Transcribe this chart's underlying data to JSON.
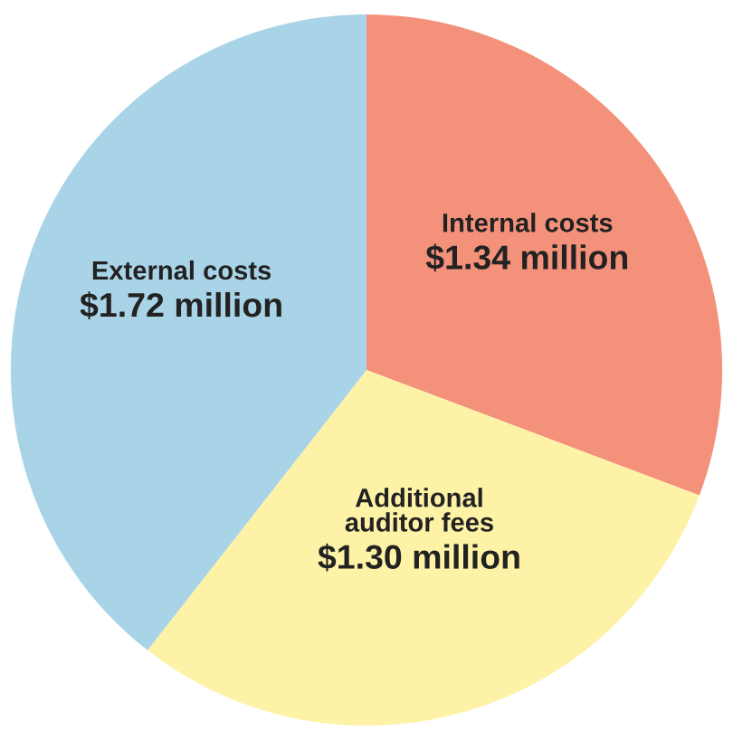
{
  "chart_data": {
    "type": "pie",
    "categories": [
      "Internal costs",
      "Additional auditor fees",
      "External costs"
    ],
    "values": [
      1.34,
      1.3,
      1.72
    ],
    "value_labels": [
      "$1.34 million",
      "$1.30 million",
      "$1.72 million"
    ],
    "colors": [
      "#f4917b",
      "#fdf2a5",
      "#a9d4e7"
    ]
  }
}
